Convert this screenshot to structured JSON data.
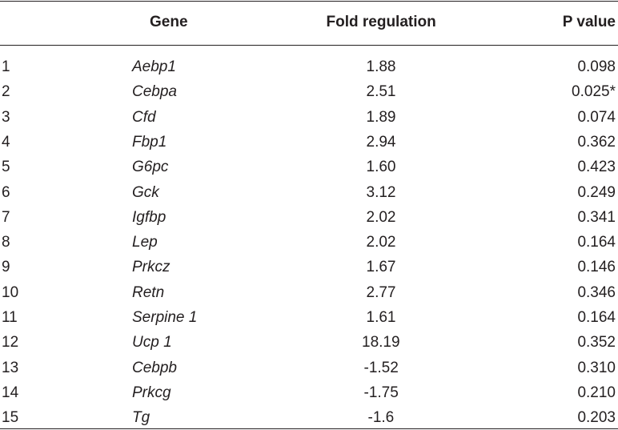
{
  "table": {
    "header": [
      "Gene",
      "Fold regulation",
      "P value"
    ],
    "rows": [
      [
        "1",
        "Aebp1",
        "1.88",
        "0.098"
      ],
      [
        "2",
        "Cebpa",
        "2.51",
        "0.025*"
      ],
      [
        "3",
        "Cfd",
        "1.89",
        "0.074"
      ],
      [
        "4",
        "Fbp1",
        "2.94",
        "0.362"
      ],
      [
        "5",
        "G6pc",
        "1.60",
        "0.423"
      ],
      [
        "6",
        "Gck",
        "3.12",
        "0.249"
      ],
      [
        "7",
        "Igfbp",
        "2.02",
        "0.341"
      ],
      [
        "8",
        "Lep",
        "2.02",
        "0.164"
      ],
      [
        "9",
        "Prkcz",
        "1.67",
        "0.146"
      ],
      [
        "10",
        "Retn",
        "2.77",
        "0.346"
      ],
      [
        "11",
        "Serpine 1",
        "1.61",
        "0.164"
      ],
      [
        "12",
        "Ucp 1",
        "18.19",
        "0.352"
      ],
      [
        "13",
        "Cebpb",
        "-1.52",
        "0.310"
      ],
      [
        "14",
        "Prkcg",
        "-1.75",
        "0.210"
      ],
      [
        "15",
        "Tg",
        "-1.6",
        "0.203"
      ]
    ]
  }
}
